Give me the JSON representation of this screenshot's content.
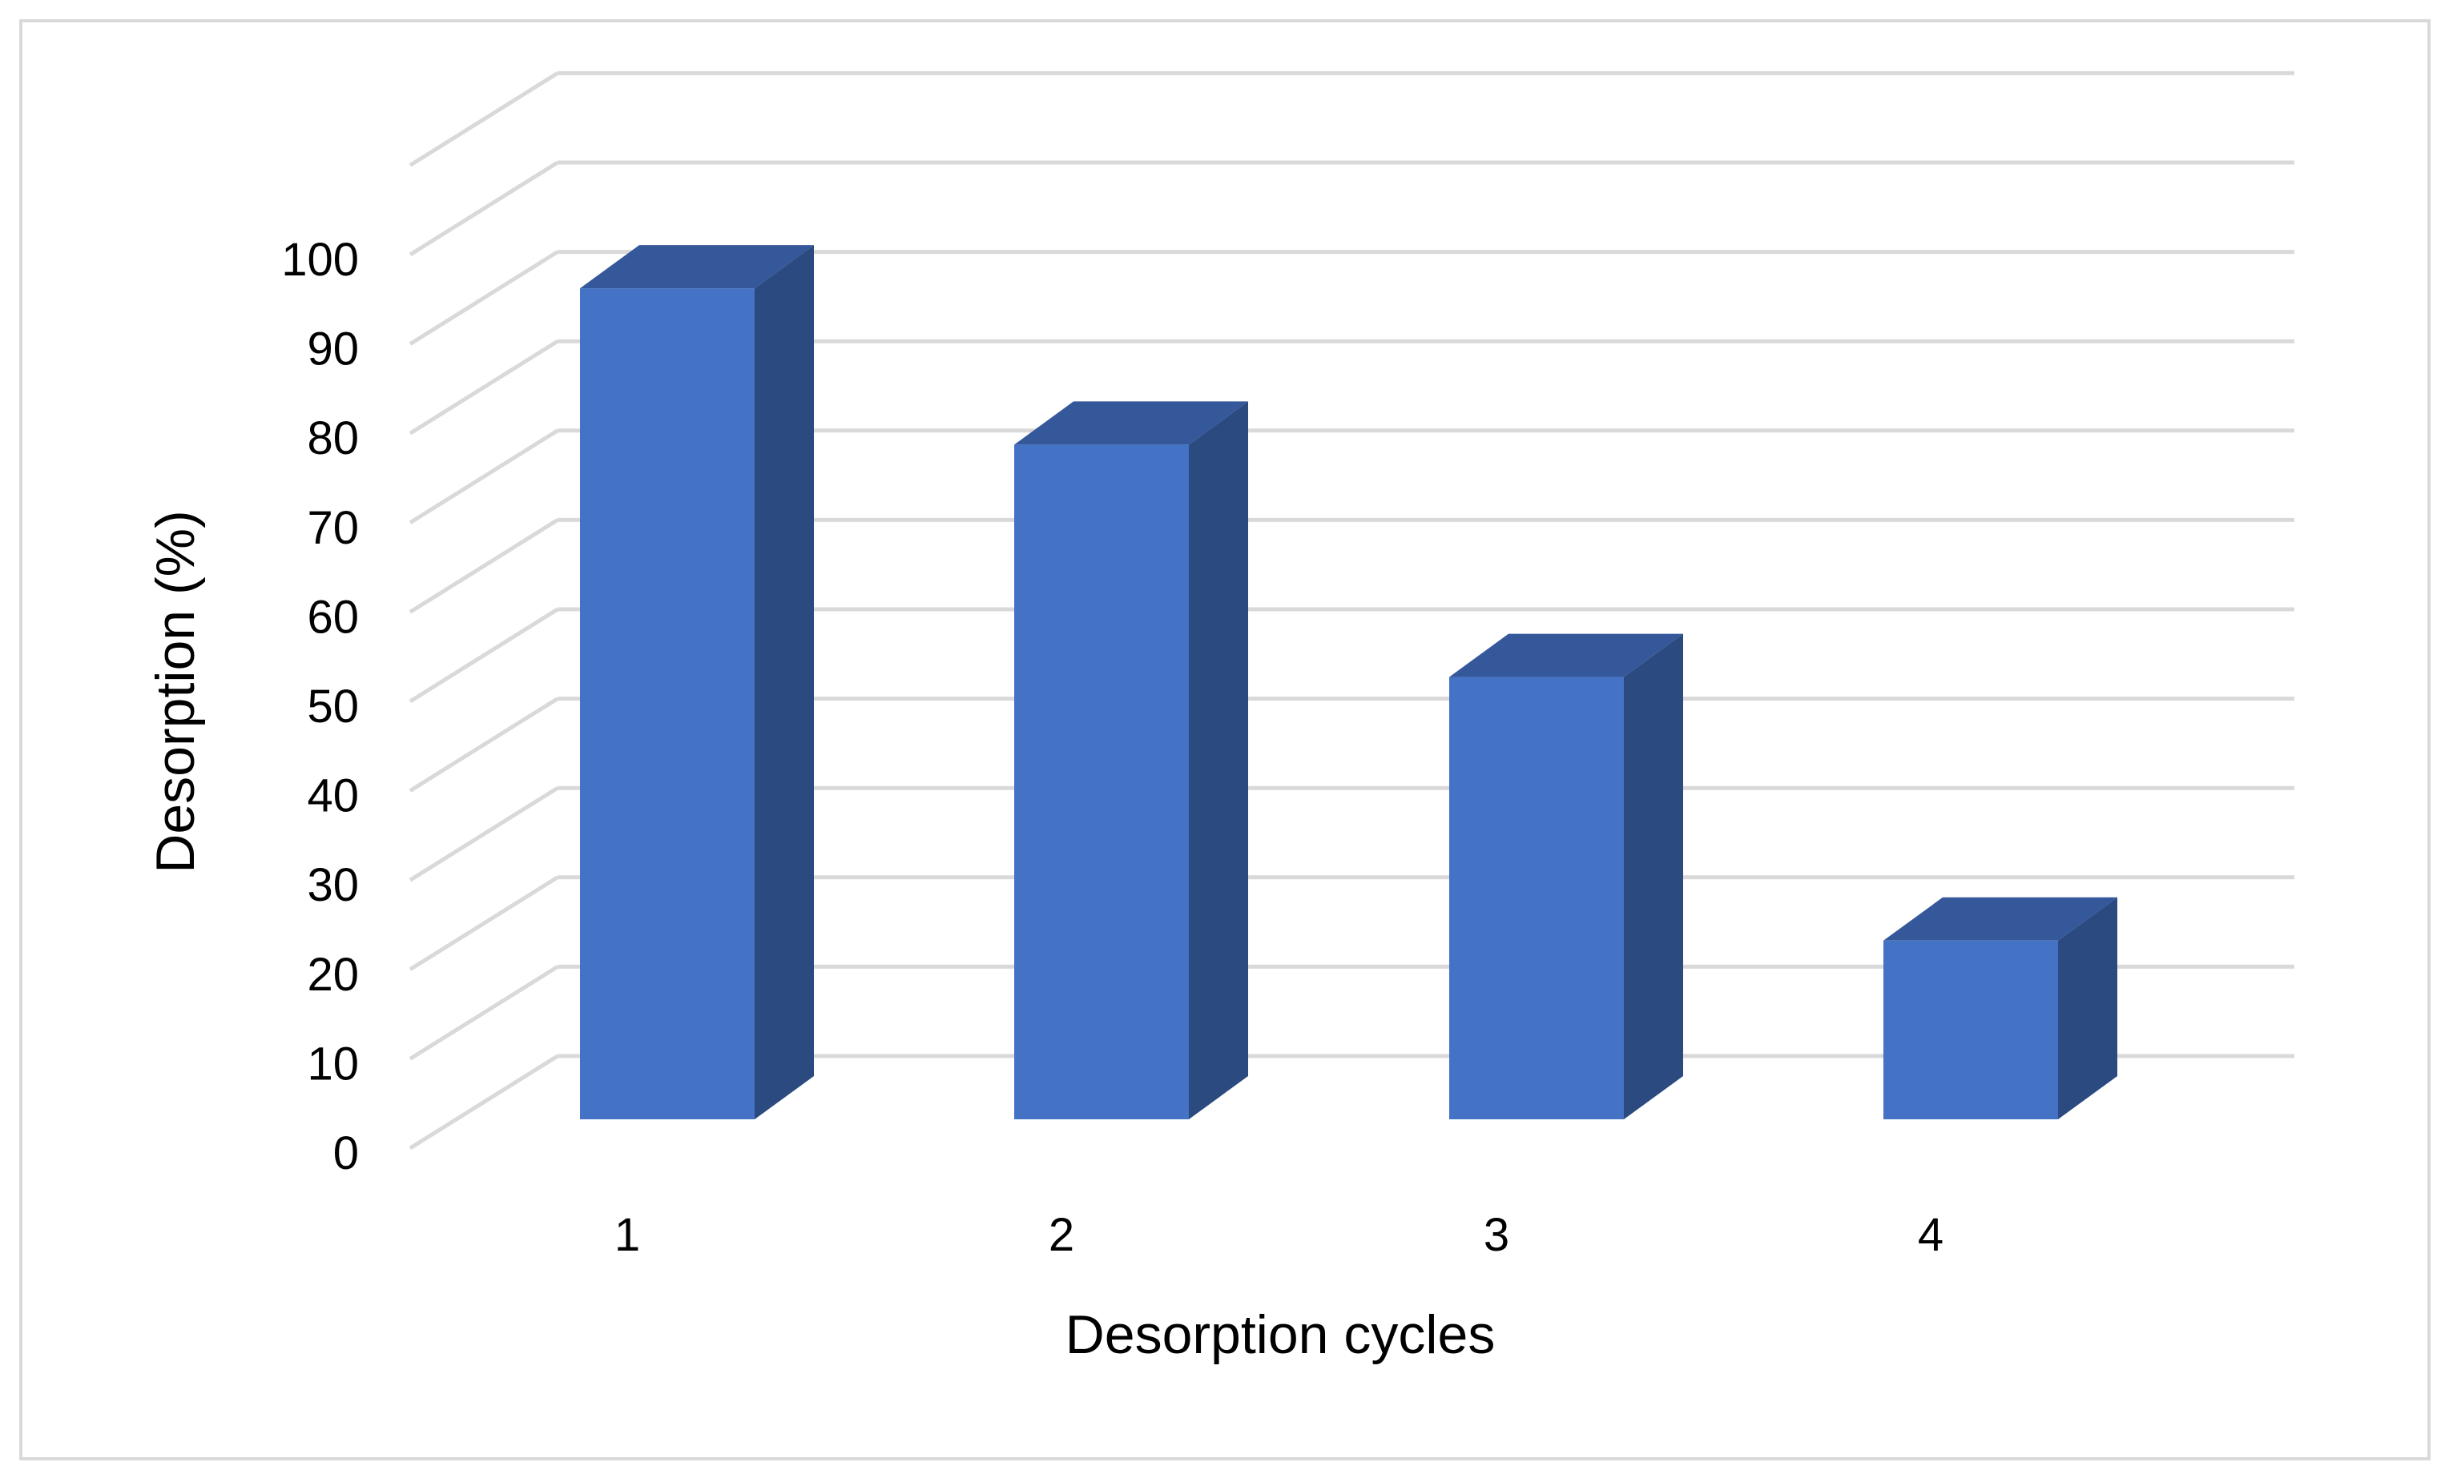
{
  "chart_data": {
    "type": "bar",
    "style": "3d-column",
    "categories": [
      "1",
      "2",
      "3",
      "4"
    ],
    "values": [
      93,
      75.5,
      49.5,
      20
    ],
    "xlabel": "Desorption cycles",
    "ylabel": "Desorption (%)",
    "ylim": [
      0,
      100
    ],
    "yticks": [
      "0",
      "10",
      "20",
      "30",
      "40",
      "50",
      "60",
      "70",
      "80",
      "90",
      "100"
    ],
    "grid": true,
    "legend": "none",
    "colors": {
      "bar_front": "#4472C4",
      "bar_side": "#2B4A80",
      "bar_top": "#35589A",
      "grid": "#D9D9D9"
    }
  }
}
